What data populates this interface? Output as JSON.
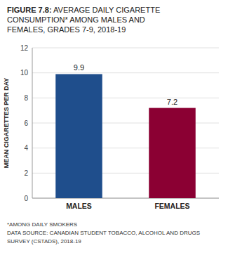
{
  "chart_data": {
    "type": "bar",
    "title": "FIGURE 7.8: AVERAGE DAILY CIGARETTE\nCONSUMPTION* AMONG MALES AND\nFEMALES, GRADES 7-9, 2018-19",
    "categories": [
      "MALES",
      "FEMALES"
    ],
    "values": [
      9.9,
      7.2
    ],
    "colors": [
      "#1F4E8C",
      "#8B0033"
    ],
    "ylabel": "MEAN CIGARETTES PER DAY",
    "ylim": [
      0,
      12
    ],
    "yticks": [
      0,
      2,
      4,
      6,
      8,
      10,
      12
    ],
    "grid": true,
    "data_labels": true,
    "annotations": [
      "*AMONG DAILY SMOKERS",
      "DATA SOURCE: CANADIAN STUDENT TOBACCO, ALCOHOL AND DRUGS",
      "SURVEY (CSTADS), 2018-19"
    ]
  }
}
